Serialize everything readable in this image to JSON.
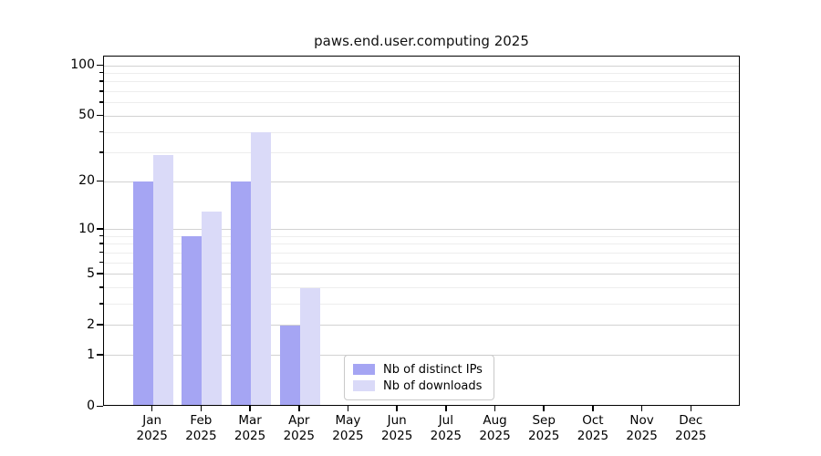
{
  "chart_data": {
    "type": "bar",
    "title": "paws.end.user.computing 2025",
    "categories": [
      "Jan",
      "Feb",
      "Mar",
      "Apr",
      "May",
      "Jun",
      "Jul",
      "Aug",
      "Sep",
      "Oct",
      "Nov",
      "Dec"
    ],
    "category_year": "2025",
    "series": [
      {
        "name": "Nb of distinct IPs",
        "color": "#a5a5f3",
        "values": [
          20,
          9,
          20,
          2,
          0,
          0,
          0,
          0,
          0,
          0,
          0,
          0
        ]
      },
      {
        "name": "Nb of downloads",
        "color": "#dadaf8",
        "values": [
          29,
          13,
          40,
          4,
          0,
          0,
          0,
          0,
          0,
          0,
          0,
          0
        ]
      }
    ],
    "y_axis": {
      "scale": "log1p",
      "max": 100,
      "major_ticks": [
        0,
        1,
        2,
        5,
        10,
        20,
        50,
        100
      ],
      "minor_ticks": [
        3,
        4,
        6,
        7,
        8,
        9,
        30,
        40,
        60,
        70,
        80,
        90
      ]
    },
    "x_axis": {
      "tick_label_lines": 2
    },
    "grid": "on",
    "legend_position": "lower center-left inside plot"
  },
  "colors": {
    "background": "#ffffff",
    "spine": "#000000",
    "major_grid": "#d2d2d2",
    "minor_grid": "#ededed",
    "legend_border": "#c9c9c9",
    "bar_distinct_ips": "#a5a5f3",
    "bar_downloads": "#dadaf8"
  }
}
